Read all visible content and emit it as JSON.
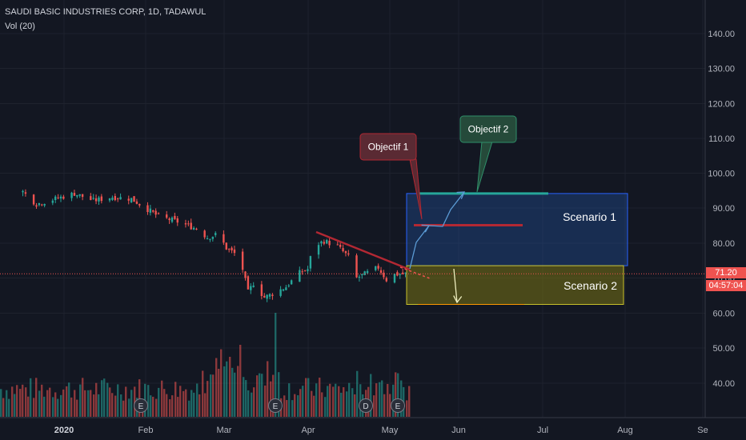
{
  "header": {
    "title": "SAUDI BASIC INDUSTRIES CORP, 1D, TADAWUL",
    "volume_label": "Vol (20)"
  },
  "price_tags": {
    "last_price": "71.20",
    "countdown": "04:57:04"
  },
  "colors": {
    "background": "#131722",
    "up": "#26a69a",
    "down": "#ef5350",
    "grid": "#1e222d",
    "axis_text": "#b2b5be"
  },
  "chart_data": {
    "type": "candlestick",
    "symbol": "SAUDI BASIC INDUSTRIES CORP",
    "interval": "1D",
    "exchange": "TADAWUL",
    "y_axis": {
      "ticks": [
        "140.00",
        "130.00",
        "120.00",
        "110.00",
        "100.00",
        "90.00",
        "80.00",
        "70.00",
        "60.00",
        "50.00",
        "40.00"
      ],
      "range": [
        35,
        145
      ]
    },
    "x_axis": {
      "ticks": [
        "2020",
        "Feb",
        "Mar",
        "Apr",
        "May",
        "Jun",
        "Jul",
        "Aug",
        "Se"
      ]
    },
    "close_trend": [
      {
        "date": "2019-12-18",
        "close": 94.5
      },
      {
        "date": "2019-12-23",
        "close": 91.0
      },
      {
        "date": "2019-12-30",
        "close": 92.5
      },
      {
        "date": "2020-01-06",
        "close": 94.0
      },
      {
        "date": "2020-01-13",
        "close": 92.0
      },
      {
        "date": "2020-01-20",
        "close": 93.0
      },
      {
        "date": "2020-01-27",
        "close": 92.5
      },
      {
        "date": "2020-01-31",
        "close": 90.5
      },
      {
        "date": "2020-02-06",
        "close": 87.5
      },
      {
        "date": "2020-02-13",
        "close": 86.0
      },
      {
        "date": "2020-02-20",
        "close": 84.0
      },
      {
        "date": "2020-02-24",
        "close": 81.5
      },
      {
        "date": "2020-02-28",
        "close": 82.5
      },
      {
        "date": "2020-03-02",
        "close": 78.5
      },
      {
        "date": "2020-03-05",
        "close": 77.0
      },
      {
        "date": "2020-03-08",
        "close": 72.5
      },
      {
        "date": "2020-03-10",
        "close": 66.0
      },
      {
        "date": "2020-03-12",
        "close": 68.5
      },
      {
        "date": "2020-03-16",
        "close": 64.5
      },
      {
        "date": "2020-03-19",
        "close": 65.5
      },
      {
        "date": "2020-03-24",
        "close": 67.5
      },
      {
        "date": "2020-03-29",
        "close": 71.5
      },
      {
        "date": "2020-04-01",
        "close": 72.5
      },
      {
        "date": "2020-04-03",
        "close": 79.0
      },
      {
        "date": "2020-04-07",
        "close": 80.5
      },
      {
        "date": "2020-04-12",
        "close": 79.0
      },
      {
        "date": "2020-04-16",
        "close": 76.0
      },
      {
        "date": "2020-04-19",
        "close": 70.0
      },
      {
        "date": "2020-04-23",
        "close": 71.5
      },
      {
        "date": "2020-04-27",
        "close": 73.0
      },
      {
        "date": "2020-04-30",
        "close": 69.5
      },
      {
        "date": "2020-05-03",
        "close": 71.0
      },
      {
        "date": "2020-05-07",
        "close": 71.2
      }
    ],
    "last_price": 71.2,
    "annotations": {
      "labels": [
        {
          "text": "Objectif 1",
          "target": 85
        },
        {
          "text": "Objectif 2",
          "target": 94
        }
      ],
      "scenarios": [
        {
          "text": "Scenario 1",
          "from": 73.5,
          "to": 94
        },
        {
          "text": "Scenario 2",
          "from": 62.5,
          "to": 73.5
        }
      ],
      "levels": [
        {
          "name": "Objectif 1",
          "price": 85
        },
        {
          "name": "Objectif 2",
          "price": 94
        },
        {
          "name": "Scenario 2 low",
          "price": 62.5
        }
      ],
      "event_markers": [
        "E",
        "E",
        "D",
        "E"
      ]
    }
  }
}
